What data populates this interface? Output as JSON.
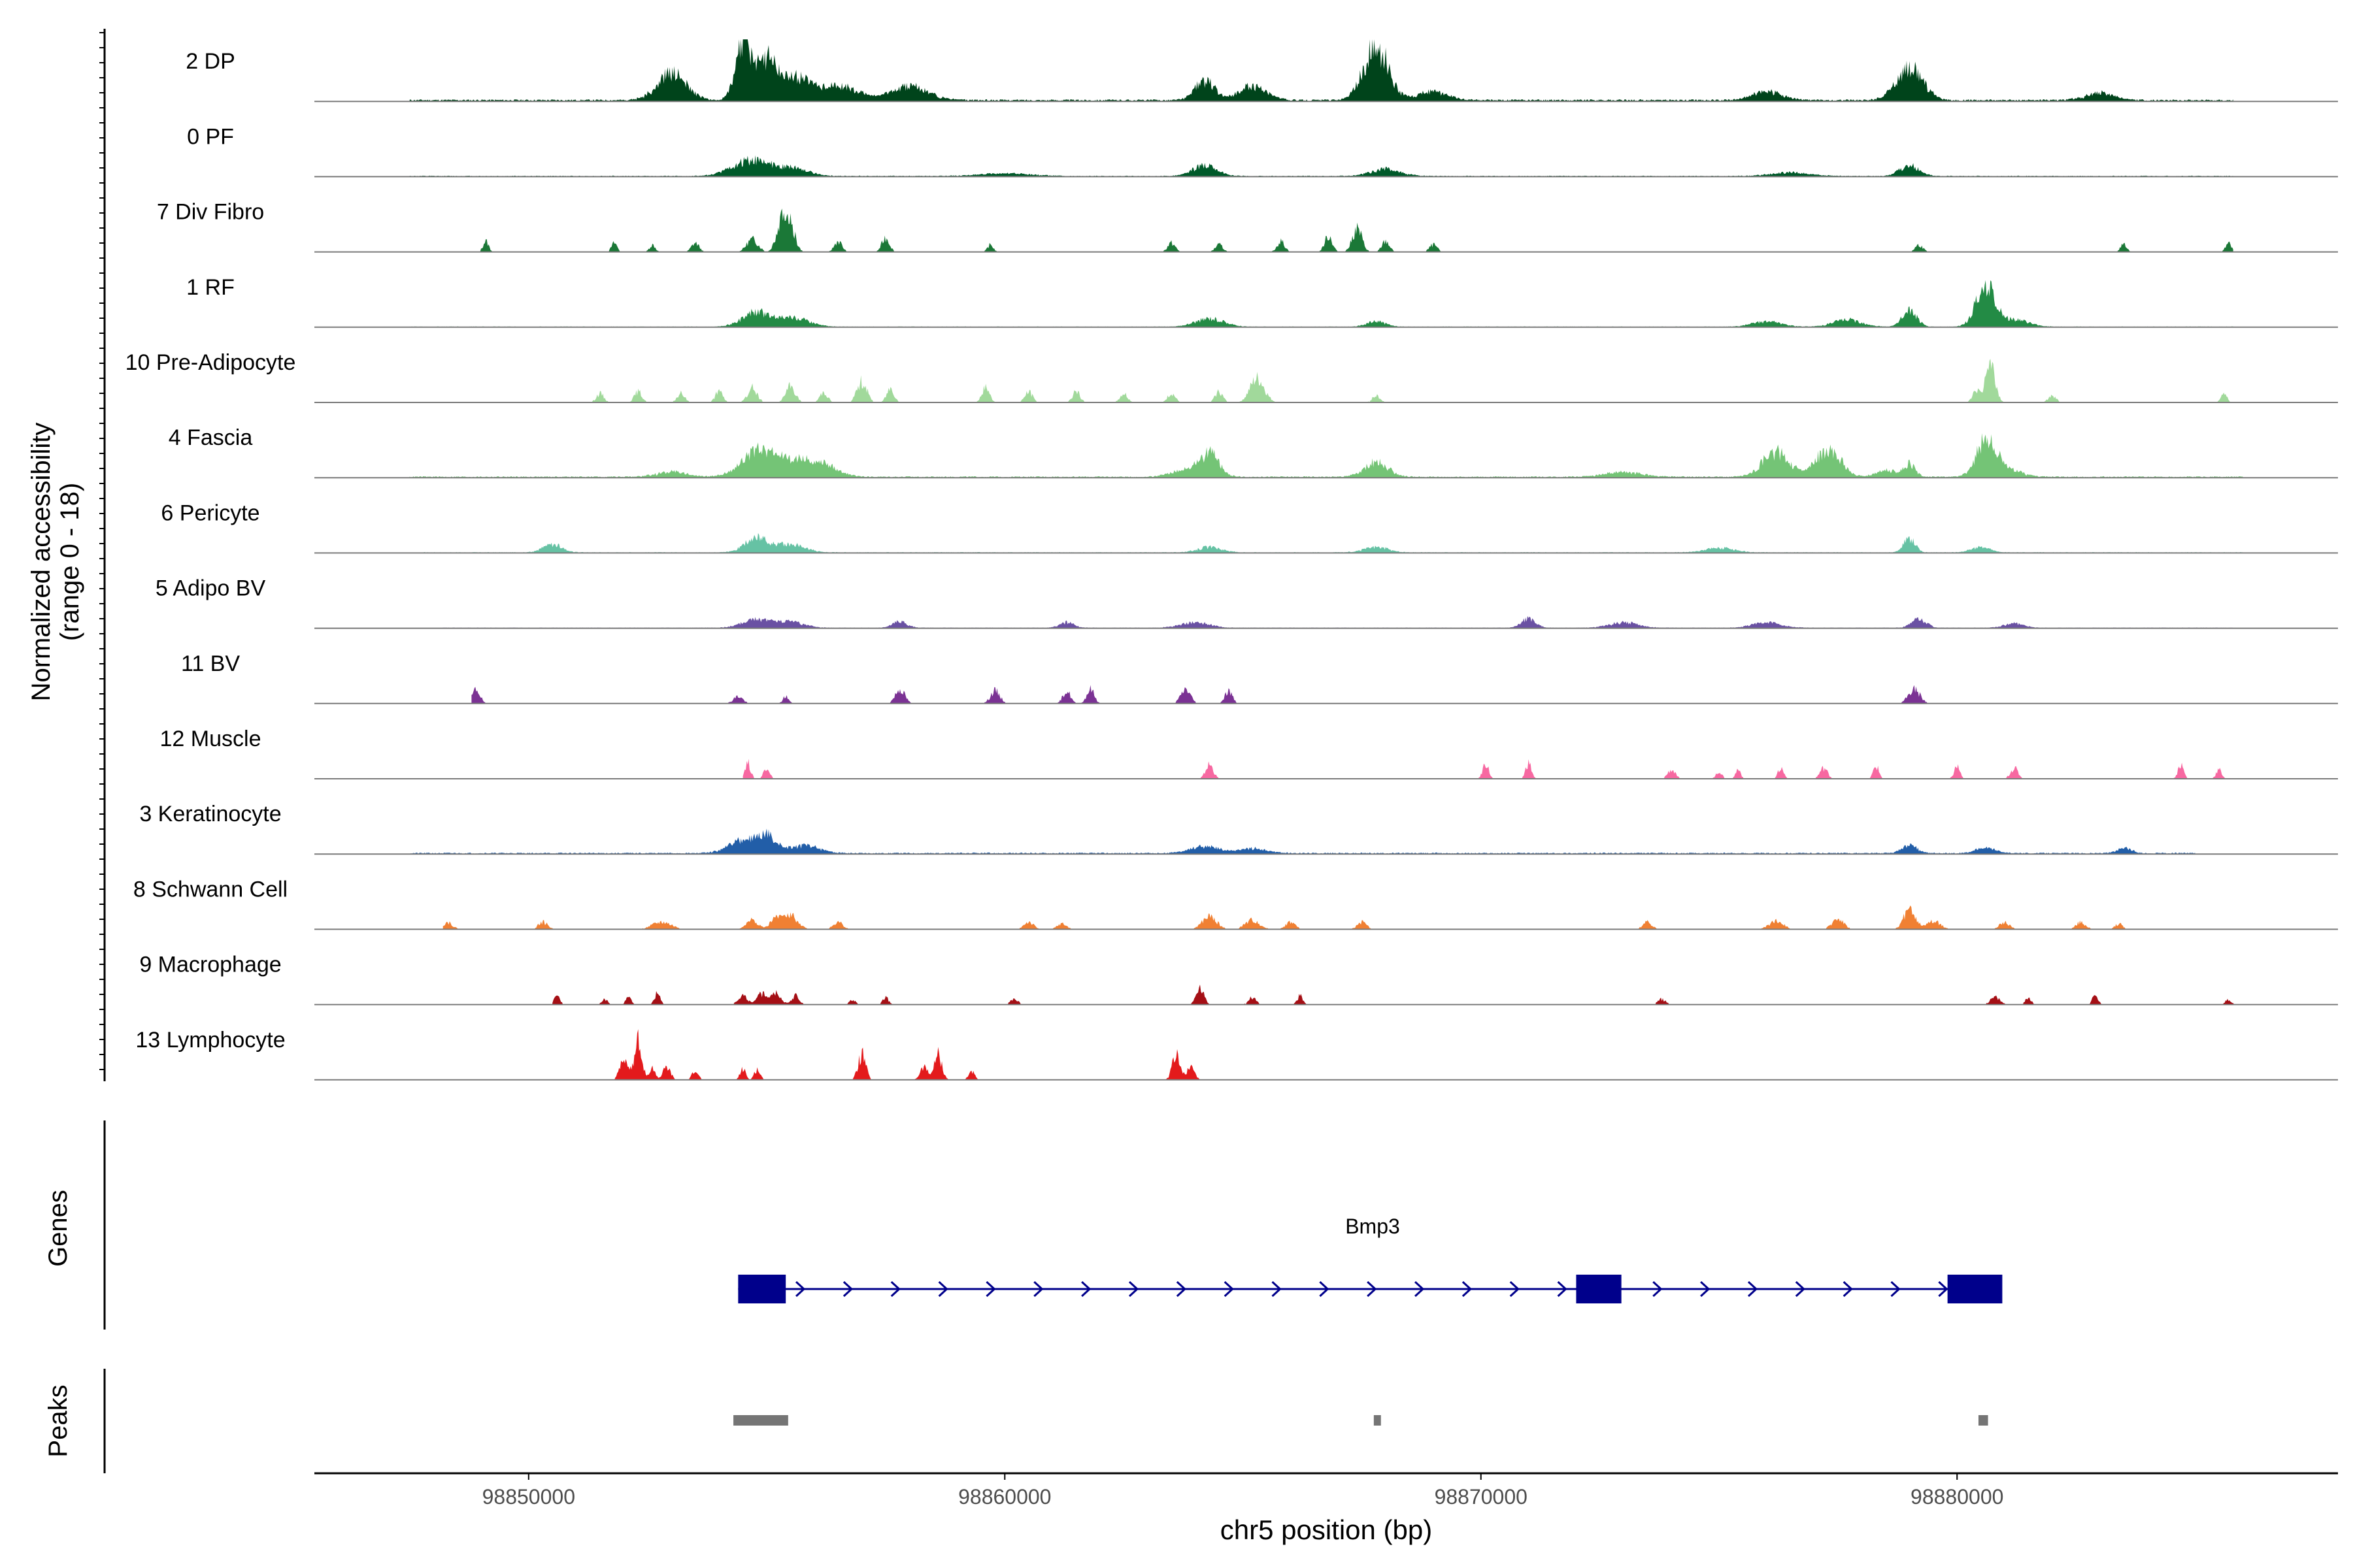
{
  "chart_data": {
    "type": "area",
    "title": "",
    "xlabel": "chr5 position (bp)",
    "ylabel_line1": "Normalized accessibility",
    "ylabel_line2": "(range 0 - 18)",
    "ylim": [
      0,
      18
    ],
    "xlim": [
      98845500,
      98888000
    ],
    "x_ticks": [
      98850000,
      98860000,
      98870000,
      98880000
    ],
    "x_tick_labels": [
      "98850000",
      "98860000",
      "98870000",
      "98880000"
    ],
    "genes_label": "Genes",
    "peaks_label": "Peaks",
    "gene": {
      "name": "Bmp3",
      "start": 98854400,
      "end": 98880900,
      "strand": "+",
      "exons": [
        [
          98854400,
          98855400
        ],
        [
          98872000,
          98872950
        ],
        [
          98879800,
          98880950
        ]
      ]
    },
    "peaks": [
      [
        98854300,
        98855450
      ],
      [
        98867750,
        98867900
      ],
      [
        98880450,
        98880650
      ]
    ],
    "series": [
      {
        "name": "2 DP",
        "color": "#00441b",
        "seed": 11,
        "base": 0.14,
        "span": [
          98847500,
          98885800
        ],
        "cont": 1,
        "peaks": [
          [
            98853000,
            3.0,
            300
          ],
          [
            98854500,
            6.5,
            160
          ],
          [
            98855000,
            4.5,
            200
          ],
          [
            98855600,
            2.5,
            300
          ],
          [
            98856500,
            1.6,
            400
          ],
          [
            98858000,
            1.5,
            400
          ],
          [
            98864200,
            2.2,
            200
          ],
          [
            98865200,
            1.5,
            300
          ],
          [
            98867800,
            6.0,
            260
          ],
          [
            98869000,
            1.0,
            300
          ],
          [
            98879000,
            3.5,
            280
          ],
          [
            98876000,
            1.0,
            300
          ],
          [
            98883000,
            0.8,
            300
          ]
        ]
      },
      {
        "name": "0 PF",
        "color": "#005a2a",
        "seed": 12,
        "base": 0.07,
        "span": [
          98847500,
          98885800
        ],
        "cont": 1,
        "peaks": [
          [
            98854700,
            1.8,
            400
          ],
          [
            98855600,
            0.8,
            300
          ],
          [
            98864200,
            1.2,
            250
          ],
          [
            98868000,
            0.8,
            300
          ],
          [
            98879000,
            1.2,
            200
          ],
          [
            98876500,
            0.4,
            400
          ],
          [
            98860000,
            0.3,
            500
          ]
        ]
      },
      {
        "name": "7 Div Fibro",
        "color": "#1b7837",
        "seed": 13,
        "base": 0.0,
        "span": [
          98848800,
          98885800
        ],
        "cont": 0,
        "peaks": [
          [
            98849100,
            1.2,
            60
          ],
          [
            98851800,
            1.0,
            60
          ],
          [
            98852600,
            0.8,
            60
          ],
          [
            98853500,
            1.0,
            80
          ],
          [
            98854700,
            1.4,
            120
          ],
          [
            98855300,
            3.5,
            100
          ],
          [
            98855500,
            2.8,
            100
          ],
          [
            98856500,
            1.2,
            80
          ],
          [
            98857500,
            1.6,
            80
          ],
          [
            98859700,
            0.8,
            60
          ],
          [
            98863500,
            1.0,
            80
          ],
          [
            98864500,
            0.8,
            80
          ],
          [
            98865800,
            1.2,
            80
          ],
          [
            98866800,
            1.8,
            80
          ],
          [
            98867400,
            2.6,
            100
          ],
          [
            98868000,
            1.2,
            80
          ],
          [
            98869000,
            0.8,
            80
          ],
          [
            98879200,
            0.8,
            80
          ],
          [
            98883500,
            1.0,
            60
          ],
          [
            98885700,
            1.2,
            60
          ]
        ]
      },
      {
        "name": "1 RF",
        "color": "#238b45",
        "seed": 14,
        "base": 0.05,
        "span": [
          98847500,
          98885800
        ],
        "cont": 1,
        "peaks": [
          [
            98854800,
            1.6,
            300
          ],
          [
            98855600,
            1.0,
            300
          ],
          [
            98864300,
            0.9,
            300
          ],
          [
            98867800,
            0.6,
            200
          ],
          [
            98876000,
            0.6,
            300
          ],
          [
            98877700,
            0.8,
            300
          ],
          [
            98879000,
            1.8,
            150
          ],
          [
            98880600,
            4.5,
            200
          ],
          [
            98881200,
            0.8,
            300
          ]
        ]
      },
      {
        "name": "10 Pre-Adipocyte",
        "color": "#a1d99b",
        "seed": 15,
        "base": 0.0,
        "span": [
          98851300,
          98885800
        ],
        "cont": 0,
        "peaks": [
          [
            98851500,
            1.0,
            80
          ],
          [
            98852300,
            1.2,
            80
          ],
          [
            98853200,
            1.0,
            80
          ],
          [
            98854000,
            1.2,
            80
          ],
          [
            98854700,
            1.6,
            100
          ],
          [
            98855500,
            1.8,
            100
          ],
          [
            98856200,
            1.2,
            80
          ],
          [
            98857000,
            2.4,
            100
          ],
          [
            98857600,
            1.6,
            80
          ],
          [
            98859600,
            1.6,
            80
          ],
          [
            98860500,
            1.2,
            80
          ],
          [
            98861500,
            1.2,
            80
          ],
          [
            98862500,
            1.0,
            80
          ],
          [
            98863500,
            1.0,
            80
          ],
          [
            98864500,
            1.2,
            80
          ],
          [
            98865300,
            2.6,
            150
          ],
          [
            98867800,
            0.8,
            80
          ],
          [
            98880400,
            1.2,
            80
          ],
          [
            98880700,
            4.5,
            100
          ],
          [
            98882000,
            0.8,
            80
          ],
          [
            98885600,
            1.2,
            60
          ]
        ]
      },
      {
        "name": "4 Fascia",
        "color": "#74c476",
        "seed": 16,
        "base": 0.1,
        "span": [
          98847500,
          98886000
        ],
        "cont": 1,
        "peaks": [
          [
            98854800,
            2.5,
            350
          ],
          [
            98855500,
            1.8,
            400
          ],
          [
            98856200,
            1.2,
            300
          ],
          [
            98853000,
            0.6,
            300
          ],
          [
            98864300,
            2.5,
            200
          ],
          [
            98863800,
            0.8,
            300
          ],
          [
            98867800,
            1.6,
            250
          ],
          [
            98876200,
            2.8,
            280
          ],
          [
            98877300,
            3.2,
            250
          ],
          [
            98878500,
            0.8,
            200
          ],
          [
            98879000,
            1.4,
            120
          ],
          [
            98880600,
            3.8,
            200
          ],
          [
            98881000,
            1.0,
            300
          ],
          [
            98873000,
            0.5,
            400
          ]
        ]
      },
      {
        "name": "6 Pericyte",
        "color": "#66c2a4",
        "seed": 17,
        "base": 0.06,
        "span": [
          98847800,
          98886000
        ],
        "cont": 1,
        "peaks": [
          [
            98850500,
            0.9,
            200
          ],
          [
            98854800,
            1.6,
            250
          ],
          [
            98855500,
            0.9,
            300
          ],
          [
            98864300,
            0.6,
            250
          ],
          [
            98867800,
            0.6,
            250
          ],
          [
            98875000,
            0.5,
            300
          ],
          [
            98879000,
            1.6,
            120
          ],
          [
            98880500,
            0.6,
            200
          ]
        ]
      },
      {
        "name": "5 Adipo BV",
        "color": "#6a51a3",
        "seed": 18,
        "base": 0.05,
        "span": [
          98848200,
          98885800
        ],
        "cont": 1,
        "peaks": [
          [
            98854800,
            0.9,
            300
          ],
          [
            98855500,
            0.6,
            300
          ],
          [
            98857800,
            0.7,
            150
          ],
          [
            98861300,
            0.6,
            150
          ],
          [
            98864000,
            0.6,
            300
          ],
          [
            98871000,
            1.0,
            150
          ],
          [
            98873000,
            0.6,
            300
          ],
          [
            98876000,
            0.6,
            300
          ],
          [
            98879200,
            1.0,
            150
          ],
          [
            98881200,
            0.5,
            200
          ]
        ]
      },
      {
        "name": "11 BV",
        "color": "#7b3294",
        "seed": 19,
        "base": 0.0,
        "span": [
          98848800,
          98880000
        ],
        "cont": 0,
        "peaks": [
          [
            98848900,
            1.6,
            80
          ],
          [
            98854400,
            0.8,
            100
          ],
          [
            98855400,
            0.8,
            60
          ],
          [
            98857800,
            1.6,
            100
          ],
          [
            98859800,
            1.4,
            100
          ],
          [
            98861300,
            1.4,
            80
          ],
          [
            98861800,
            1.6,
            80
          ],
          [
            98863800,
            1.6,
            100
          ],
          [
            98864700,
            1.4,
            80
          ],
          [
            98879100,
            1.6,
            120
          ]
        ]
      },
      {
        "name": "12 Muscle",
        "color": "#f768a1",
        "seed": 20,
        "base": 0.0,
        "span": [
          98854500,
          98886000
        ],
        "cont": 0,
        "peaks": [
          [
            98854600,
            1.8,
            60
          ],
          [
            98855000,
            1.4,
            60
          ],
          [
            98864300,
            1.6,
            80
          ],
          [
            98870100,
            1.8,
            60
          ],
          [
            98871000,
            1.8,
            60
          ],
          [
            98874000,
            1.0,
            80
          ],
          [
            98875000,
            0.9,
            60
          ],
          [
            98875400,
            0.9,
            60
          ],
          [
            98876300,
            1.2,
            60
          ],
          [
            98877200,
            1.2,
            80
          ],
          [
            98878300,
            1.4,
            60
          ],
          [
            98880000,
            1.4,
            60
          ],
          [
            98881200,
            1.2,
            80
          ],
          [
            98884700,
            1.6,
            60
          ],
          [
            98885500,
            1.0,
            60
          ]
        ]
      },
      {
        "name": "3 Keratinocyte",
        "color": "#225ea8",
        "seed": 21,
        "base": 0.1,
        "span": [
          98847500,
          98885000
        ],
        "cont": 1,
        "peaks": [
          [
            98854500,
            1.4,
            300
          ],
          [
            98855000,
            1.8,
            200
          ],
          [
            98855800,
            0.9,
            300
          ],
          [
            98864200,
            0.8,
            300
          ],
          [
            98865200,
            0.5,
            300
          ],
          [
            98879000,
            0.9,
            150
          ],
          [
            98880600,
            0.6,
            200
          ],
          [
            98883500,
            0.6,
            150
          ]
        ]
      },
      {
        "name": "8 Schwann Cell",
        "color": "#f08033",
        "seed": 22,
        "base": 0.0,
        "span": [
          98848200,
          98883600
        ],
        "cont": 0,
        "peaks": [
          [
            98848300,
            0.8,
            100
          ],
          [
            98850300,
            0.8,
            100
          ],
          [
            98852800,
            0.8,
            200
          ],
          [
            98854700,
            1.0,
            120
          ],
          [
            98855200,
            1.2,
            120
          ],
          [
            98855500,
            1.6,
            150
          ],
          [
            98856500,
            0.8,
            100
          ],
          [
            98860500,
            0.8,
            100
          ],
          [
            98861200,
            0.6,
            100
          ],
          [
            98864300,
            1.4,
            150
          ],
          [
            98865200,
            1.0,
            150
          ],
          [
            98866000,
            0.8,
            100
          ],
          [
            98867500,
            0.8,
            100
          ],
          [
            98873500,
            0.8,
            100
          ],
          [
            98876200,
            0.9,
            150
          ],
          [
            98877500,
            1.2,
            120
          ],
          [
            98879000,
            2.2,
            120
          ],
          [
            98879500,
            0.9,
            150
          ],
          [
            98881000,
            0.8,
            100
          ],
          [
            98882600,
            0.8,
            100
          ],
          [
            98883400,
            0.6,
            80
          ]
        ]
      },
      {
        "name": "9 Macrophage",
        "color": "#a50f15",
        "seed": 23,
        "base": 0.0,
        "span": [
          98850500,
          98886000
        ],
        "cont": 0,
        "peaks": [
          [
            98850600,
            1.0,
            60
          ],
          [
            98851600,
            0.6,
            60
          ],
          [
            98852100,
            0.8,
            60
          ],
          [
            98852700,
            1.2,
            60
          ],
          [
            98854500,
            0.9,
            100
          ],
          [
            98854900,
            1.2,
            100
          ],
          [
            98855200,
            1.4,
            100
          ],
          [
            98855600,
            1.0,
            80
          ],
          [
            98856800,
            0.6,
            60
          ],
          [
            98857500,
            0.8,
            60
          ],
          [
            98860200,
            0.6,
            80
          ],
          [
            98864100,
            1.8,
            80
          ],
          [
            98865200,
            0.8,
            80
          ],
          [
            98866200,
            1.0,
            60
          ],
          [
            98873800,
            0.6,
            80
          ],
          [
            98880800,
            0.8,
            100
          ],
          [
            98881500,
            0.8,
            60
          ],
          [
            98882900,
            1.0,
            60
          ],
          [
            98885700,
            0.6,
            60
          ]
        ]
      },
      {
        "name": "13 Lymphocyte",
        "color": "#e31a1c",
        "seed": 24,
        "base": 0.0,
        "span": [
          98851800,
          98864200
        ],
        "cont": 0,
        "peaks": [
          [
            98852000,
            2.8,
            80
          ],
          [
            98852300,
            4.5,
            80
          ],
          [
            98852600,
            1.2,
            60
          ],
          [
            98852900,
            1.4,
            80
          ],
          [
            98853500,
            1.2,
            60
          ],
          [
            98854500,
            1.2,
            60
          ],
          [
            98854800,
            1.2,
            60
          ],
          [
            98857000,
            2.8,
            80
          ],
          [
            98858300,
            1.4,
            80
          ],
          [
            98858600,
            2.8,
            80
          ],
          [
            98859300,
            1.0,
            60
          ],
          [
            98863600,
            2.8,
            80
          ],
          [
            98863900,
            1.4,
            80
          ]
        ]
      }
    ]
  }
}
